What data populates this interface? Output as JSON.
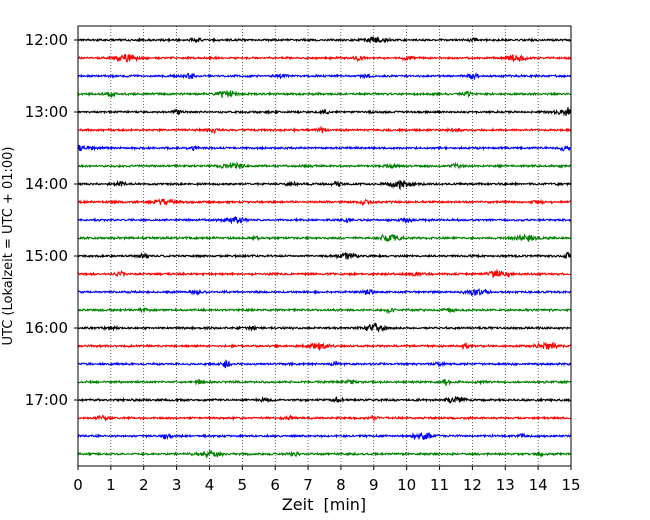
{
  "chart_data": {
    "type": "line",
    "title": "",
    "xlabel": "Zeit  [min]",
    "ylabel": "UTC (Lokalzeit = UTC + 01:00)",
    "xlim": [
      0,
      15
    ],
    "x_ticks": [
      0,
      1,
      2,
      3,
      4,
      5,
      6,
      7,
      8,
      9,
      10,
      11,
      12,
      13,
      14,
      15
    ],
    "x_tick_labels": [
      "0",
      "1",
      "2",
      "3",
      "4",
      "5",
      "6",
      "7",
      "8",
      "9",
      "10",
      "11",
      "12",
      "13",
      "14",
      "15"
    ],
    "y_tick_labels": [
      "12:00",
      "13:00",
      "14:00",
      "15:00",
      "16:00",
      "17:00"
    ],
    "grid": "vertical dotted lines at each minute",
    "line_colors": [
      "#000000",
      "#ff0000",
      "#0000ff",
      "#008000"
    ],
    "series": [
      {
        "start": "12:00",
        "color": "#000000",
        "events": [
          {
            "t": 9.0,
            "amp": 0.45
          },
          {
            "t": 3.6,
            "amp": 0.3
          },
          {
            "t": 12.0,
            "amp": 0.25
          }
        ]
      },
      {
        "start": "12:15",
        "color": "#ff0000",
        "events": [
          {
            "t": 1.5,
            "amp": 0.5
          },
          {
            "t": 8.5,
            "amp": 0.4
          },
          {
            "t": 13.4,
            "amp": 0.45
          },
          {
            "t": 10.0,
            "amp": 0.3
          }
        ]
      },
      {
        "start": "12:30",
        "color": "#0000ff",
        "events": [
          {
            "t": 3.4,
            "amp": 0.35
          },
          {
            "t": 6.2,
            "amp": 0.3
          },
          {
            "t": 8.8,
            "amp": 0.3
          },
          {
            "t": 12.0,
            "amp": 0.35
          }
        ]
      },
      {
        "start": "12:45",
        "color": "#008000",
        "events": [
          {
            "t": 4.5,
            "amp": 0.5
          },
          {
            "t": 11.8,
            "amp": 0.4
          },
          {
            "t": 1.0,
            "amp": 0.25
          }
        ]
      },
      {
        "start": "13:00",
        "color": "#000000",
        "events": [
          {
            "t": 14.9,
            "amp": 0.55
          },
          {
            "t": 3.0,
            "amp": 0.3
          },
          {
            "t": 7.5,
            "amp": 0.3
          }
        ]
      },
      {
        "start": "13:15",
        "color": "#ff0000",
        "events": [
          {
            "t": 4.1,
            "amp": 0.4
          },
          {
            "t": 7.4,
            "amp": 0.35
          },
          {
            "t": 11.5,
            "amp": 0.3
          }
        ]
      },
      {
        "start": "13:30",
        "color": "#0000ff",
        "events": [
          {
            "t": 0.1,
            "amp": 0.5
          },
          {
            "t": 3.5,
            "amp": 0.35
          },
          {
            "t": 14.8,
            "amp": 0.35
          }
        ]
      },
      {
        "start": "13:45",
        "color": "#008000",
        "events": [
          {
            "t": 4.7,
            "amp": 0.5
          },
          {
            "t": 9.5,
            "amp": 0.3
          },
          {
            "t": 11.5,
            "amp": 0.25
          }
        ]
      },
      {
        "start": "14:00",
        "color": "#000000",
        "events": [
          {
            "t": 9.8,
            "amp": 0.55
          },
          {
            "t": 6.5,
            "amp": 0.4
          },
          {
            "t": 1.3,
            "amp": 0.35
          },
          {
            "t": 7.9,
            "amp": 0.35
          }
        ]
      },
      {
        "start": "14:15",
        "color": "#ff0000",
        "events": [
          {
            "t": 2.6,
            "amp": 0.45
          },
          {
            "t": 8.7,
            "amp": 0.4
          },
          {
            "t": 14.0,
            "amp": 0.3
          }
        ]
      },
      {
        "start": "14:30",
        "color": "#0000ff",
        "events": [
          {
            "t": 4.8,
            "amp": 0.45
          },
          {
            "t": 8.2,
            "amp": 0.3
          },
          {
            "t": 10.0,
            "amp": 0.3
          }
        ]
      },
      {
        "start": "14:45",
        "color": "#008000",
        "events": [
          {
            "t": 9.5,
            "amp": 0.6
          },
          {
            "t": 13.6,
            "amp": 0.5
          },
          {
            "t": 5.4,
            "amp": 0.3
          }
        ]
      },
      {
        "start": "15:00",
        "color": "#000000",
        "events": [
          {
            "t": 8.2,
            "amp": 0.45
          },
          {
            "t": 14.9,
            "amp": 0.4
          },
          {
            "t": 2.0,
            "amp": 0.25
          }
        ]
      },
      {
        "start": "15:15",
        "color": "#ff0000",
        "events": [
          {
            "t": 1.3,
            "amp": 0.4
          },
          {
            "t": 10.3,
            "amp": 0.35
          },
          {
            "t": 12.8,
            "amp": 0.45
          }
        ]
      },
      {
        "start": "15:30",
        "color": "#0000ff",
        "events": [
          {
            "t": 3.6,
            "amp": 0.35
          },
          {
            "t": 8.8,
            "amp": 0.35
          },
          {
            "t": 12.1,
            "amp": 0.5
          }
        ]
      },
      {
        "start": "15:45",
        "color": "#008000",
        "events": [
          {
            "t": 2.0,
            "amp": 0.3
          },
          {
            "t": 9.5,
            "amp": 0.3
          },
          {
            "t": 11.3,
            "amp": 0.3
          }
        ]
      },
      {
        "start": "16:00",
        "color": "#000000",
        "events": [
          {
            "t": 9.0,
            "amp": 0.5
          },
          {
            "t": 5.3,
            "amp": 0.35
          },
          {
            "t": 1.0,
            "amp": 0.3
          }
        ]
      },
      {
        "start": "16:15",
        "color": "#ff0000",
        "events": [
          {
            "t": 7.3,
            "amp": 0.55
          },
          {
            "t": 11.8,
            "amp": 0.35
          },
          {
            "t": 14.3,
            "amp": 0.45
          }
        ]
      },
      {
        "start": "16:30",
        "color": "#0000ff",
        "events": [
          {
            "t": 4.5,
            "amp": 0.4
          },
          {
            "t": 7.8,
            "amp": 0.3
          },
          {
            "t": 11.0,
            "amp": 0.3
          }
        ]
      },
      {
        "start": "16:45",
        "color": "#008000",
        "events": [
          {
            "t": 3.7,
            "amp": 0.35
          },
          {
            "t": 8.3,
            "amp": 0.4
          },
          {
            "t": 11.2,
            "amp": 0.4
          },
          {
            "t": 12.2,
            "amp": 0.35
          }
        ]
      },
      {
        "start": "17:00",
        "color": "#000000",
        "events": [
          {
            "t": 11.5,
            "amp": 0.5
          },
          {
            "t": 7.9,
            "amp": 0.35
          },
          {
            "t": 5.7,
            "amp": 0.3
          }
        ]
      },
      {
        "start": "17:15",
        "color": "#ff0000",
        "events": [
          {
            "t": 0.7,
            "amp": 0.4
          },
          {
            "t": 6.4,
            "amp": 0.4
          },
          {
            "t": 9.0,
            "amp": 0.3
          }
        ]
      },
      {
        "start": "17:30",
        "color": "#0000ff",
        "events": [
          {
            "t": 10.5,
            "amp": 0.45
          },
          {
            "t": 2.7,
            "amp": 0.3
          },
          {
            "t": 13.5,
            "amp": 0.3
          }
        ]
      },
      {
        "start": "17:45",
        "color": "#008000",
        "events": [
          {
            "t": 4.0,
            "amp": 0.5
          },
          {
            "t": 14.1,
            "amp": 0.35
          },
          {
            "t": 6.6,
            "amp": 0.3
          }
        ]
      }
    ]
  }
}
